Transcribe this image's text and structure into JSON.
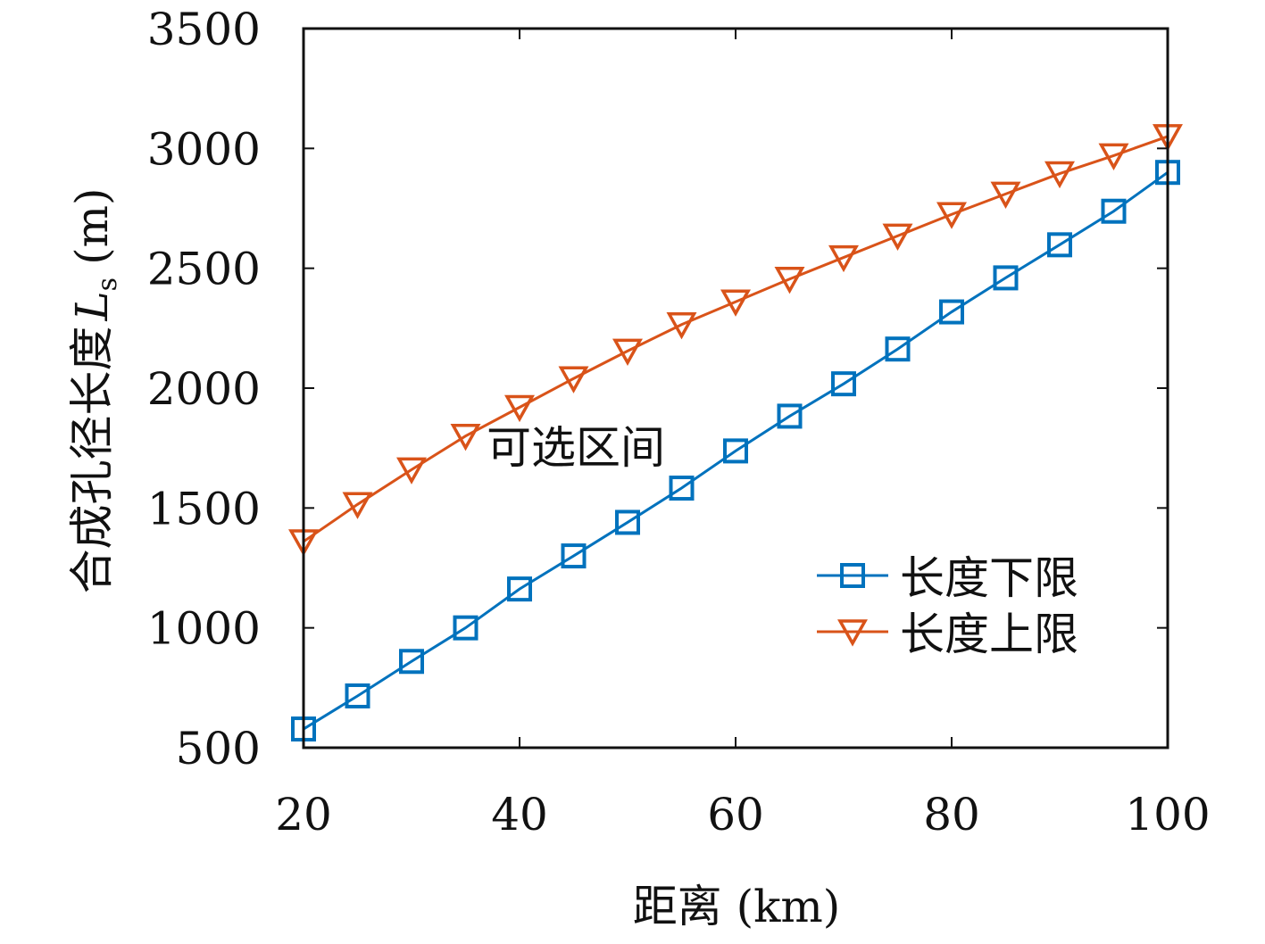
{
  "chart_data": {
    "type": "line",
    "title": "",
    "xlabel": "距离 (km)",
    "ylabel": "合成孔径长度",
    "ylabel_symbol": "L",
    "ylabel_subscript": "s",
    "ylabel_unit": "(m)",
    "xlim": [
      20,
      100
    ],
    "ylim": [
      500,
      3500
    ],
    "xticks": [
      20,
      40,
      60,
      80,
      100
    ],
    "yticks": [
      500,
      1000,
      1500,
      2000,
      2500,
      3000,
      3500
    ],
    "grid": false,
    "legend_position": "lower-right",
    "annotation": "可选区间",
    "x": [
      20,
      25,
      30,
      35,
      40,
      45,
      50,
      55,
      60,
      65,
      70,
      75,
      80,
      85,
      90,
      95,
      100
    ],
    "series": [
      {
        "name": "长度下限",
        "color": "#0072BD",
        "marker": "square",
        "values": [
          578,
          716,
          860,
          1000,
          1162,
          1300,
          1440,
          1583,
          1738,
          1883,
          2018,
          2163,
          2318,
          2460,
          2598,
          2738,
          2900
        ]
      },
      {
        "name": "长度上限",
        "color": "#D95319",
        "marker": "triangle-down",
        "values": [
          1360,
          1515,
          1660,
          1800,
          1920,
          2040,
          2155,
          2265,
          2360,
          2455,
          2545,
          2635,
          2725,
          2810,
          2895,
          2970,
          3050
        ]
      }
    ]
  }
}
